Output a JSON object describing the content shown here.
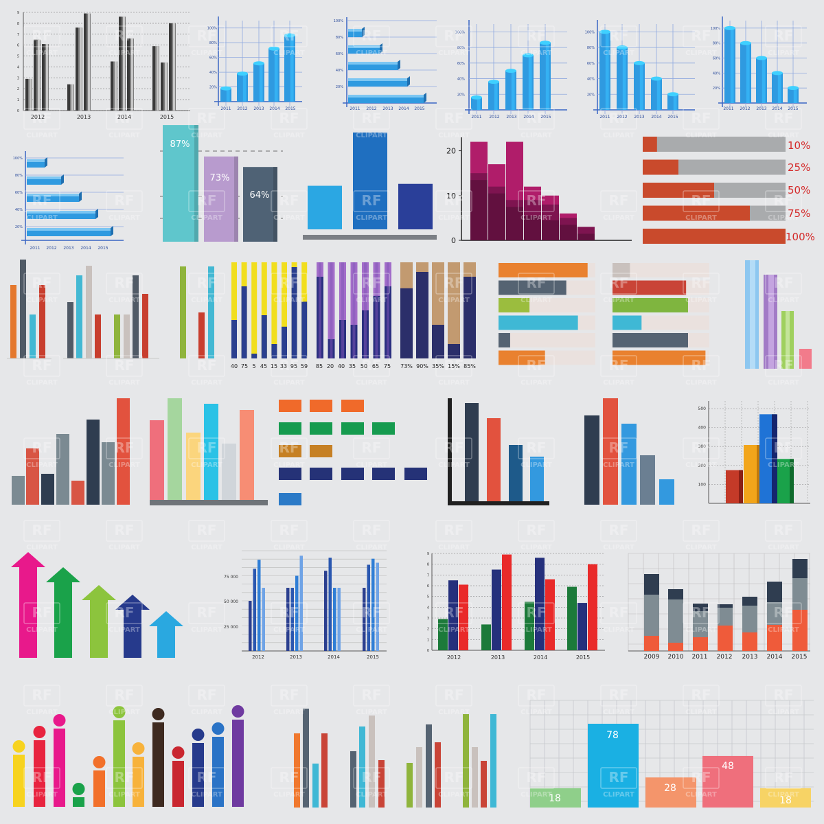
{
  "watermark": {
    "line1": "RF",
    "line2": "CLIPART"
  },
  "colors": {
    "background": "#e6e7e9",
    "blue3d": "#2f9ae0",
    "grid_blue": "#3a66c4",
    "magenta": "#a0195c",
    "red": "#c94a2c",
    "gray": "#a9abad"
  },
  "chart_data": [
    {
      "id": "gray-3d-grouped",
      "type": "bar",
      "categories": [
        "2012",
        "2013",
        "2014",
        "2015"
      ],
      "series": [
        {
          "values": [
            2.9,
            2.4,
            4.5,
            5.9
          ]
        },
        {
          "values": [
            6.5,
            7.6,
            8.6,
            4.4
          ]
        },
        {
          "values": [
            6.1,
            8.9,
            6.6,
            8.0
          ]
        }
      ],
      "yticks": [
        "0",
        "1",
        "2",
        "3",
        "4",
        "5",
        "6",
        "7",
        "8",
        "9"
      ],
      "ylim": [
        0,
        9
      ]
    },
    {
      "id": "blue-3d-cols-rising",
      "type": "bar",
      "categories": [
        "2011",
        "2012",
        "2013",
        "2014",
        "2015"
      ],
      "values": [
        18,
        38,
        52,
        72,
        90
      ],
      "yticks": [
        "20%",
        "40%",
        "60%",
        "80%",
        "100%"
      ],
      "ylim": [
        0,
        110
      ]
    },
    {
      "id": "blue-3d-hbars-a",
      "type": "bar",
      "orientation": "horizontal",
      "categories": [
        "2011",
        "2012",
        "2013",
        "2014",
        "2015"
      ],
      "values": [
        100,
        80,
        60,
        40,
        20
      ],
      "yticks": [
        "20%",
        "40%",
        "60%",
        "80%",
        "100%"
      ],
      "ylim": [
        0,
        110
      ]
    },
    {
      "id": "blue-3d-cols-rising-2",
      "type": "bar",
      "categories": [
        "2011",
        "2012",
        "2013",
        "2014",
        "2015"
      ],
      "values": [
        16,
        36,
        50,
        70,
        86
      ],
      "yticks": [
        "20%",
        "40%",
        "60%",
        "80%",
        "100%"
      ],
      "ylim": [
        0,
        110
      ]
    },
    {
      "id": "blue-3d-cols-falling",
      "type": "bar",
      "categories": [
        "2011",
        "2012",
        "2013",
        "2014",
        "2015"
      ],
      "values": [
        100,
        80,
        60,
        40,
        20
      ],
      "yticks": [
        "20%",
        "40%",
        "60%",
        "80%",
        "100%"
      ],
      "ylim": [
        0,
        110
      ]
    },
    {
      "id": "blue-3d-cols-falling-2",
      "type": "bar",
      "categories": [
        "2011",
        "2012",
        "2013",
        "2014",
        "2015"
      ],
      "values": [
        100,
        80,
        60,
        40,
        20
      ],
      "yticks": [
        "20%",
        "40%",
        "60%",
        "80%",
        "100%"
      ],
      "ylim": [
        0,
        110
      ]
    },
    {
      "id": "blue-3d-hbars-b",
      "type": "bar",
      "orientation": "horizontal",
      "categories": [
        "2011",
        "2012",
        "2013",
        "2014",
        "2015"
      ],
      "values": [
        100,
        80,
        60,
        40,
        20
      ],
      "yticks": [
        "20%",
        "40%",
        "60%",
        "80%",
        "100%"
      ],
      "ylim": [
        0,
        110
      ]
    },
    {
      "id": "pastel-percent",
      "type": "bar",
      "categories": [
        "87%",
        "73%",
        "64%"
      ],
      "values": [
        87,
        73,
        64
      ],
      "colors": [
        "#5fc6cc",
        "#b89bce",
        "#4f6275"
      ],
      "ylim": [
        0,
        100
      ]
    },
    {
      "id": "three-blues",
      "type": "bar",
      "values": [
        45,
        100,
        47
      ],
      "colors": [
        "#2ba7e3",
        "#1f6fc0",
        "#2a3f99"
      ]
    },
    {
      "id": "magenta-histogram",
      "type": "bar",
      "series": [
        {
          "values": [
            22,
            17,
            22,
            12,
            10,
            6,
            3
          ]
        },
        {
          "values": [
            15,
            12,
            9,
            9,
            8,
            5,
            3
          ]
        },
        {
          "values": [
            15,
            12,
            9,
            7,
            6,
            5,
            3
          ]
        }
      ],
      "yticks": [
        "0",
        "10",
        "20"
      ],
      "ylim": [
        0,
        23
      ]
    },
    {
      "id": "red-progress",
      "type": "bar",
      "orientation": "horizontal",
      "categories": [
        "10%",
        "25%",
        "50%",
        "75%",
        "100%"
      ],
      "values": [
        10,
        25,
        50,
        75,
        100
      ]
    },
    {
      "id": "flat-thin-cols",
      "type": "bar",
      "values": [
        74,
        100,
        44,
        74,
        54,
        78,
        76,
        56,
        46,
        66,
        86,
        92,
        66,
        46,
        82,
        94,
        66,
        81
      ]
    },
    {
      "id": "stacked-yellow",
      "type": "bar",
      "categories": [
        "40",
        "75",
        "5",
        "45",
        "15",
        "33",
        "95",
        "59"
      ],
      "values": [
        40,
        75,
        5,
        45,
        15,
        33,
        95,
        59
      ]
    },
    {
      "id": "stacked-purple",
      "type": "bar",
      "categories": [
        "85",
        "20",
        "40",
        "35",
        "50",
        "65",
        "75"
      ],
      "values": [
        85,
        20,
        40,
        35,
        50,
        65,
        75
      ]
    },
    {
      "id": "stacked-tan",
      "type": "bar",
      "categories": [
        "73%",
        "90%",
        "35%",
        "15%",
        "85%"
      ],
      "values": [
        73,
        90,
        35,
        15,
        85
      ]
    },
    {
      "id": "hbars-onbg-a",
      "type": "bar",
      "orientation": "horizontal",
      "values": [
        92,
        70,
        32,
        82,
        12,
        48
      ]
    },
    {
      "id": "hbars-onbg-b",
      "type": "bar",
      "orientation": "horizontal",
      "values": [
        18,
        76,
        78,
        30,
        78,
        96
      ]
    },
    {
      "id": "pastel-overlap",
      "type": "bar",
      "values": [
        100,
        88,
        58,
        20
      ]
    },
    {
      "id": "flat-mix-a",
      "type": "bar",
      "values": [
        28,
        53,
        29,
        67,
        23,
        80,
        59,
        100
      ]
    },
    {
      "id": "flat-pastel-b",
      "type": "bar",
      "values": [
        79,
        100,
        69,
        96,
        58,
        91
      ]
    },
    {
      "id": "block-rows",
      "type": "bar",
      "orientation": "horizontal",
      "values": [
        3,
        4,
        2,
        5,
        1
      ]
    },
    {
      "id": "dark-axis-bars",
      "type": "bar",
      "values": [
        100,
        87,
        60,
        49
      ]
    },
    {
      "id": "dark-bars-2",
      "type": "bar",
      "values": [
        100,
        100,
        91,
        64,
        24
      ]
    },
    {
      "id": "gridded-3d",
      "type": "bar",
      "values": [
        175,
        315,
        315,
        475,
        480,
        230,
        225
      ],
      "yticks": [
        "100",
        "200",
        "300",
        "400",
        "500"
      ],
      "ylim": [
        0,
        540
      ]
    },
    {
      "id": "arrows",
      "type": "bar",
      "values": [
        100,
        83,
        64,
        48,
        30
      ]
    },
    {
      "id": "blue-grouped",
      "type": "bar",
      "categories": [
        "2012",
        "2013",
        "2014",
        "2015"
      ],
      "series": [
        {
          "values": [
            50000,
            63000,
            80000,
            63000
          ]
        },
        {
          "values": [
            82000,
            63000,
            93000,
            86000
          ]
        },
        {
          "values": [
            91000,
            75000,
            63000,
            92000
          ]
        },
        {
          "values": [
            63000,
            95000,
            63000,
            88000
          ]
        }
      ],
      "yticks": [
        "25 000",
        "50 000",
        "75 000"
      ],
      "ylim": [
        0,
        100000
      ]
    },
    {
      "id": "rgb-grouped",
      "type": "bar",
      "categories": [
        "2012",
        "2013",
        "2014",
        "2015"
      ],
      "series": [
        {
          "values": [
            2.9,
            2.4,
            4.5,
            5.9
          ]
        },
        {
          "values": [
            6.5,
            7.5,
            8.6,
            4.4
          ]
        },
        {
          "values": [
            6.1,
            8.9,
            6.6,
            8.0
          ]
        }
      ],
      "yticks": [
        "0",
        "1",
        "2",
        "3",
        "4",
        "5",
        "6",
        "7",
        "8",
        "9"
      ],
      "ylim": [
        0,
        9
      ]
    },
    {
      "id": "stacked-years",
      "type": "bar",
      "categories": [
        "2009",
        "2010",
        "2011",
        "2012",
        "2013",
        "2014",
        "2015"
      ],
      "series": [
        {
          "values": [
            22,
            12,
            20,
            37,
            27,
            38,
            60
          ]
        },
        {
          "values": [
            60,
            63,
            38,
            26,
            39,
            33,
            46
          ]
        },
        {
          "values": [
            30,
            15,
            11,
            5,
            13,
            30,
            28
          ]
        }
      ]
    },
    {
      "id": "lollipop",
      "type": "bar",
      "values": [
        46,
        58,
        77,
        35,
        34,
        100,
        45,
        70,
        59,
        74,
        72,
        92,
        100
      ]
    },
    {
      "id": "thin-cols-c",
      "type": "bar",
      "values": [
        60,
        100,
        40,
        42,
        60,
        75,
        50,
        51,
        90,
        65,
        100
      ]
    },
    {
      "id": "pastel-labeled",
      "type": "bar",
      "categories": [
        "18",
        "78",
        "28",
        "48",
        "18"
      ],
      "values": [
        18,
        78,
        28,
        48,
        18
      ],
      "colors": [
        "#8fcf8a",
        "#1ab0e3",
        "#f4956b",
        "#ef6f7c",
        "#f7d365"
      ]
    }
  ]
}
